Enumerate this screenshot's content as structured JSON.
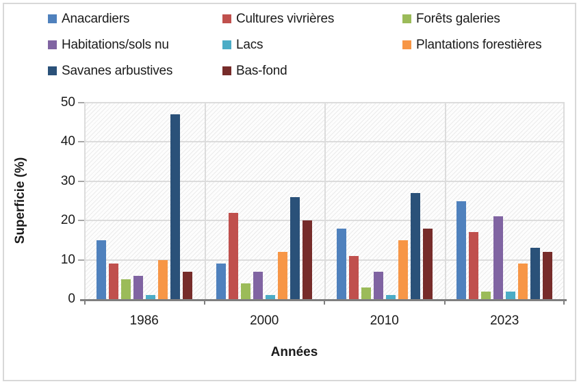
{
  "chart_data": {
    "type": "bar",
    "title": "",
    "xlabel": "Années",
    "ylabel": "Superficie (%)",
    "categories": [
      "1986",
      "2000",
      "2010",
      "2023"
    ],
    "series": [
      {
        "name": "Anacardiers",
        "color": "#4F81BD",
        "values": [
          15,
          9,
          18,
          25
        ]
      },
      {
        "name": "Cultures vivrières",
        "color": "#C0504D",
        "values": [
          9,
          22,
          11,
          17
        ]
      },
      {
        "name": "Forêts galeries",
        "color": "#9BBB59",
        "values": [
          5,
          4,
          3,
          2
        ]
      },
      {
        "name": "Habitations/sols nu",
        "color": "#8064A2",
        "values": [
          6,
          7,
          7,
          21
        ]
      },
      {
        "name": "Lacs",
        "color": "#4BACC6",
        "values": [
          1,
          1,
          1,
          2
        ]
      },
      {
        "name": "Plantations forestières",
        "color": "#F79646",
        "values": [
          10,
          12,
          15,
          9
        ]
      },
      {
        "name": "Savanes arbustives",
        "color": "#2A5179",
        "values": [
          47,
          26,
          27,
          13
        ]
      },
      {
        "name": "Bas-fond",
        "color": "#772C2A",
        "values": [
          7,
          20,
          18,
          12
        ]
      }
    ],
    "ylim": [
      0,
      50
    ],
    "yticks": [
      0,
      10,
      20,
      30,
      40,
      50
    ],
    "grid": true,
    "plot_background": "diagonal-hatch",
    "legend_position": "top"
  }
}
